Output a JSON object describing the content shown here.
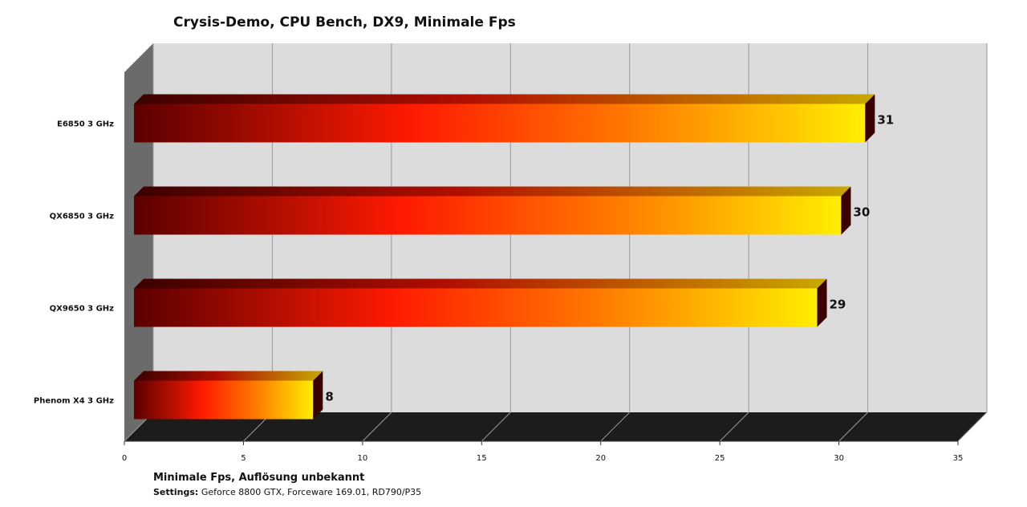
{
  "chart_data": {
    "type": "bar",
    "orientation": "horizontal",
    "three_d": true,
    "title": "Crysis-Demo, CPU Bench, DX9,  Minimale Fps",
    "categories": [
      "E6850  3 GHz",
      "QX6850  3 GHz",
      "QX9650  3 GHz",
      "Phenom X4 3 GHz"
    ],
    "values": [
      31,
      30,
      29,
      8
    ],
    "data_labels": [
      "31",
      "30",
      "29",
      "8"
    ],
    "xlim": [
      0,
      35
    ],
    "xticks": [
      0,
      5,
      10,
      15,
      20,
      25,
      30,
      35
    ],
    "xtick_labels": [
      "0",
      "5",
      "10",
      "15",
      "20",
      "25",
      "30",
      "35"
    ],
    "grid": true,
    "legend": "none",
    "colors": {
      "gradient_start": "#5a0000",
      "gradient_mid": "#ff1a00",
      "gradient_orange": "#ff7a00",
      "gradient_end": "#ffee00",
      "back_wall": "#dcdcdc",
      "floor": "#1c1c1c",
      "side_wall": "#6b6b6b"
    }
  },
  "footnote": {
    "caption": "Minimale Fps, Auflösung unbekannt",
    "settings_label": "Settings:",
    "settings_text": " Geforce 8800 GTX, Forceware 169.01, RD790/P35"
  }
}
